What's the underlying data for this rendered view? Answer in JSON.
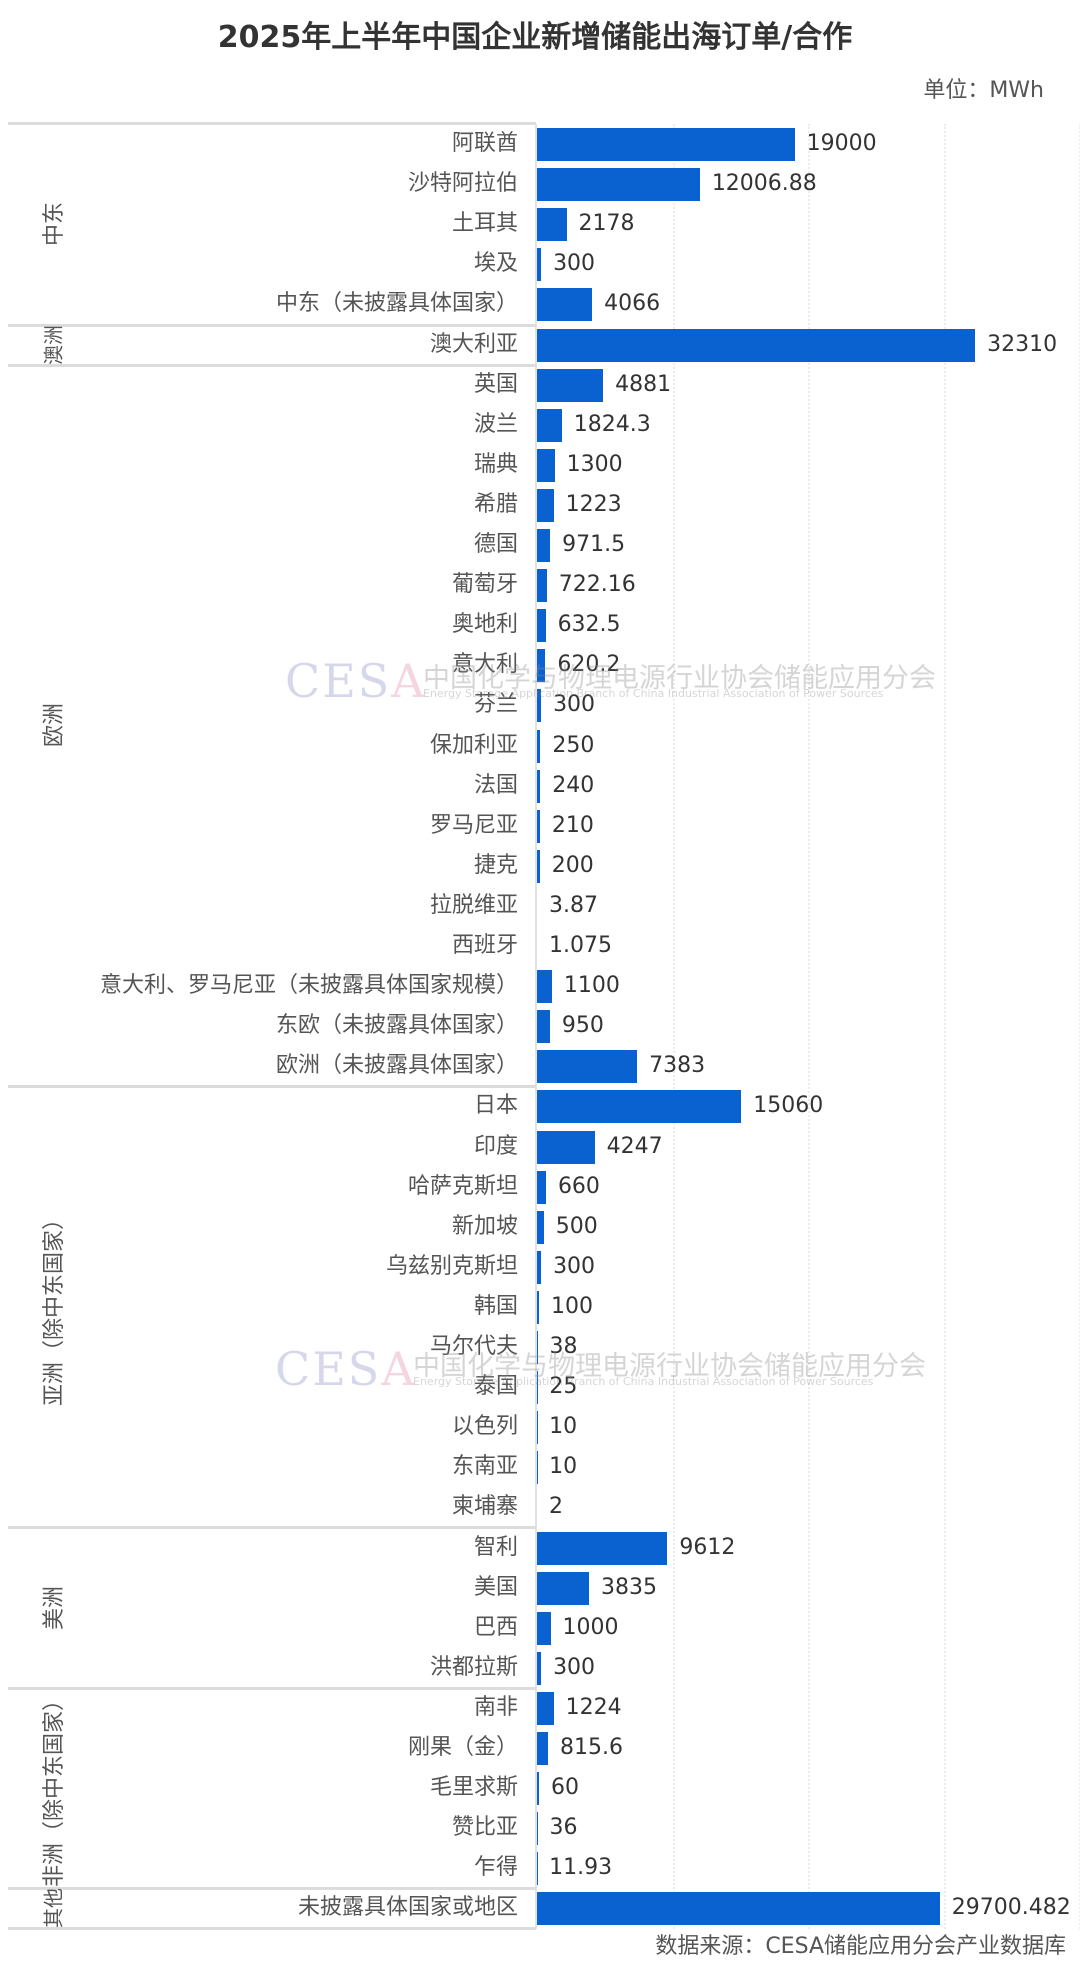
{
  "header": {
    "title": "2025年上半年中国企业新增储能出海订单/合作",
    "unit": "单位：MWh"
  },
  "footer": {
    "source": "数据来源：CESA储能应用分会产业数据库"
  },
  "watermark": {
    "logo": "CESA",
    "cn": "中国化学与物理电源行业协会储能应用分会",
    "en": "Energy Storage Application Branch of China Industrial Association of Power Sources"
  },
  "style": {
    "bar_color": "#0a62d0",
    "separator_color": "#dcdcdc",
    "text_color": "#333333"
  },
  "chart_data": {
    "type": "bar",
    "orientation": "horizontal",
    "title": "2025年上半年中国企业新增储能出海订单/合作",
    "xlabel": "",
    "ylabel": "",
    "unit": "MWh",
    "grid": true,
    "grid_step": 10000,
    "xlim": [
      0,
      40000
    ],
    "legend": null,
    "groups": [
      {
        "name": "中东",
        "items": [
          {
            "label": "阿联酋",
            "value": 19000,
            "display": "19000"
          },
          {
            "label": "沙特阿拉伯",
            "value": 12006.88,
            "display": "12006.88"
          },
          {
            "label": "土耳其",
            "value": 2178,
            "display": "2178"
          },
          {
            "label": "埃及",
            "value": 300,
            "display": "300"
          },
          {
            "label": "中东（未披露具体国家）",
            "value": 4066,
            "display": "4066"
          }
        ]
      },
      {
        "name": "澳洲",
        "items": [
          {
            "label": "澳大利亚",
            "value": 32310,
            "display": "32310"
          }
        ]
      },
      {
        "name": "欧洲",
        "items": [
          {
            "label": "英国",
            "value": 4881,
            "display": "4881"
          },
          {
            "label": "波兰",
            "value": 1824.3,
            "display": "1824.3"
          },
          {
            "label": "瑞典",
            "value": 1300,
            "display": "1300"
          },
          {
            "label": "希腊",
            "value": 1223,
            "display": "1223"
          },
          {
            "label": "德国",
            "value": 971.5,
            "display": "971.5"
          },
          {
            "label": "葡萄牙",
            "value": 722.16,
            "display": "722.16"
          },
          {
            "label": "奥地利",
            "value": 632.5,
            "display": "632.5"
          },
          {
            "label": "意大利",
            "value": 620.2,
            "display": "620.2"
          },
          {
            "label": "芬兰",
            "value": 300,
            "display": "300"
          },
          {
            "label": "保加利亚",
            "value": 250,
            "display": "250"
          },
          {
            "label": "法国",
            "value": 240,
            "display": "240"
          },
          {
            "label": "罗马尼亚",
            "value": 210,
            "display": "210"
          },
          {
            "label": "捷克",
            "value": 200,
            "display": "200"
          },
          {
            "label": "拉脱维亚",
            "value": 3.87,
            "display": "3.87"
          },
          {
            "label": "西班牙",
            "value": 1.075,
            "display": "1.075"
          },
          {
            "label": "意大利、罗马尼亚（未披露具体国家规模）",
            "value": 1100,
            "display": "1100"
          },
          {
            "label": "东欧（未披露具体国家）",
            "value": 950,
            "display": "950"
          },
          {
            "label": "欧洲（未披露具体国家）",
            "value": 7383,
            "display": "7383"
          }
        ]
      },
      {
        "name": "亚洲（除中东国家）",
        "items": [
          {
            "label": "日本",
            "value": 15060,
            "display": "15060"
          },
          {
            "label": "印度",
            "value": 4247,
            "display": "4247"
          },
          {
            "label": "哈萨克斯坦",
            "value": 660,
            "display": "660"
          },
          {
            "label": "新加坡",
            "value": 500,
            "display": "500"
          },
          {
            "label": "乌兹别克斯坦",
            "value": 300,
            "display": "300"
          },
          {
            "label": "韩国",
            "value": 100,
            "display": "100"
          },
          {
            "label": "马尔代夫",
            "value": 38,
            "display": "38"
          },
          {
            "label": "泰国",
            "value": 25,
            "display": "25"
          },
          {
            "label": "以色列",
            "value": 10,
            "display": "10"
          },
          {
            "label": "东南亚",
            "value": 10,
            "display": "10"
          },
          {
            "label": "柬埔寨",
            "value": 2,
            "display": "2"
          }
        ]
      },
      {
        "name": "美洲",
        "items": [
          {
            "label": "智利",
            "value": 9612,
            "display": "9612"
          },
          {
            "label": "美国",
            "value": 3835,
            "display": "3835"
          },
          {
            "label": "巴西",
            "value": 1000,
            "display": "1000"
          },
          {
            "label": "洪都拉斯",
            "value": 300,
            "display": "300"
          }
        ]
      },
      {
        "name": "非洲（除中东国家）",
        "items": [
          {
            "label": "南非",
            "value": 1224,
            "display": "1224"
          },
          {
            "label": "刚果（金）",
            "value": 815.6,
            "display": "815.6"
          },
          {
            "label": "毛里求斯",
            "value": 60,
            "display": "60"
          },
          {
            "label": "赞比亚",
            "value": 36,
            "display": "36"
          },
          {
            "label": "乍得",
            "value": 11.93,
            "display": "11.93"
          }
        ]
      },
      {
        "name": "其他",
        "items": [
          {
            "label": "未披露具体国家或地区",
            "value": 29700.482,
            "display": "29700.482"
          }
        ]
      }
    ]
  }
}
